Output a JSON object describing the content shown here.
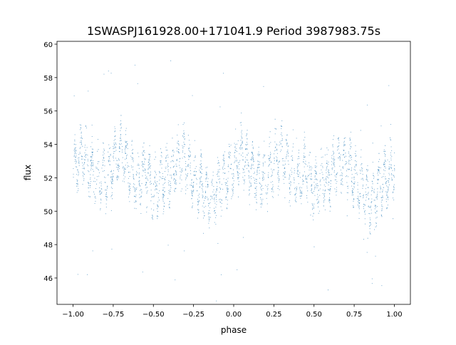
{
  "chart_data": {
    "type": "scatter",
    "title": "1SWASPJ161928.00+171041.9 Period 3987983.75s",
    "xlabel": "phase",
    "ylabel": "flux",
    "xlim": [
      -1.1,
      1.1
    ],
    "ylim": [
      44.42,
      60.17
    ],
    "x_ticks": [
      -1.0,
      -0.75,
      -0.5,
      -0.25,
      0.0,
      0.25,
      0.5,
      0.75,
      1.0
    ],
    "x_tick_labels": [
      "−1.00",
      "−0.75",
      "−0.50",
      "−0.25",
      "0.00",
      "0.25",
      "0.50",
      "0.75",
      "1.00"
    ],
    "y_ticks": [
      46,
      48,
      50,
      52,
      54,
      56,
      58,
      60
    ],
    "y_tick_labels": [
      "46",
      "48",
      "50",
      "52",
      "54",
      "56",
      "58",
      "60"
    ],
    "grid": false,
    "legend": "none",
    "point_color": "#1f77b4",
    "series_profile": {
      "description_phase": [
        0.0,
        0.05,
        0.1,
        0.15,
        0.2,
        0.25,
        0.3,
        0.35,
        0.4,
        0.45,
        0.5,
        0.55,
        0.6,
        0.65,
        0.7,
        0.75,
        0.8,
        0.85,
        0.9,
        0.95,
        1.0
      ],
      "mean_flux": [
        52.5,
        53.5,
        52.6,
        52.0,
        52.0,
        53.0,
        53.5,
        52.6,
        51.6,
        52.6,
        51.0,
        52.0,
        52.0,
        53.0,
        53.0,
        52.0,
        51.5,
        50.6,
        51.5,
        52.0,
        52.6
      ],
      "spread": 1.4,
      "repeats_over_phase_range": [
        -1.0,
        1.0
      ],
      "n_points": 9000
    }
  }
}
